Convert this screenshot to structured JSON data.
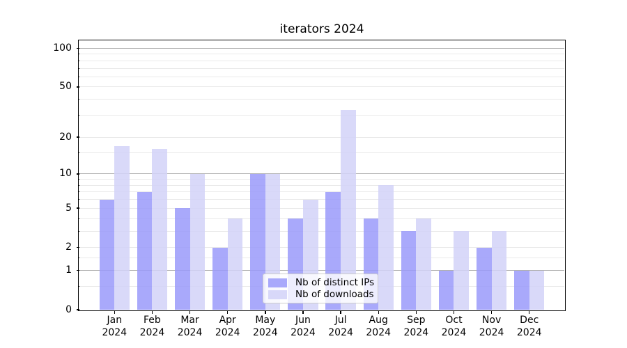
{
  "figure": {
    "title": "iterators 2024",
    "background": "#ffffff"
  },
  "colors": {
    "ips": "#9a9afa",
    "downloads": "#d2d2f8",
    "grid_major": "#b0b0b0",
    "grid_minor": "#e9e9e9",
    "spine": "#000000"
  },
  "legend": {
    "items": [
      {
        "label": "Nb of distinct IPs",
        "color_key": "ips"
      },
      {
        "label": "Nb of downloads",
        "color_key": "downloads"
      }
    ]
  },
  "chart_data": {
    "type": "bar",
    "title": "iterators 2024",
    "xlabel": "",
    "ylabel": "",
    "categories": [
      "Jan 2024",
      "Feb 2024",
      "Mar 2024",
      "Apr 2024",
      "May 2024",
      "Jun 2024",
      "Jul 2024",
      "Aug 2024",
      "Sep 2024",
      "Oct 2024",
      "Nov 2024",
      "Dec 2024"
    ],
    "series": [
      {
        "name": "Nb of distinct IPs",
        "color_key": "ips",
        "values": [
          6,
          7,
          5,
          2,
          10,
          4,
          7,
          4,
          3,
          1,
          2,
          1
        ]
      },
      {
        "name": "Nb of downloads",
        "color_key": "downloads",
        "values": [
          17,
          16,
          10,
          4,
          10,
          6,
          33,
          8,
          4,
          3,
          3,
          1
        ]
      }
    ],
    "yscale": "log1p",
    "ylim": [
      0,
      115
    ],
    "yticks_labeled": [
      0,
      1,
      2,
      5,
      10,
      20,
      50,
      100
    ],
    "ytick_labels": [
      "0",
      "1",
      "2",
      "5",
      "10",
      "20",
      "50",
      "100"
    ],
    "grid_major": [
      1,
      10,
      100
    ],
    "grid_minor": [
      0.5,
      1.5,
      2,
      3,
      4,
      5,
      6,
      7,
      8,
      9,
      15,
      20,
      30,
      40,
      50,
      60,
      70,
      80,
      90
    ],
    "grid": "on",
    "legend_position": "lower center"
  }
}
